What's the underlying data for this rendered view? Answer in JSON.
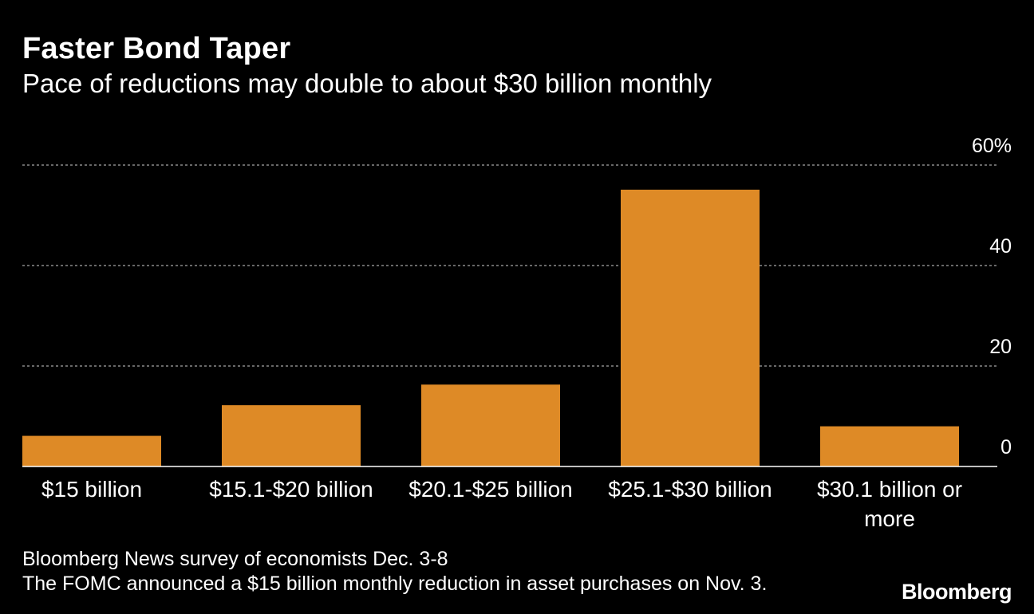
{
  "header": {
    "title": "Faster Bond Taper",
    "subtitle": "Pace of reductions may double to about $30 billion monthly"
  },
  "footer": {
    "note_1": "Bloomberg News survey of economists Dec. 3-8",
    "note_2": "The FOMC announced a $15 billion monthly reduction in asset purchases on Nov. 3.",
    "logo_text": "Bloomberg"
  },
  "colors": {
    "bar": "#DE8A26",
    "grid": "#8a8a8a",
    "background": "#000000",
    "text": "#ffffff"
  },
  "chart_data": {
    "type": "bar",
    "title": "Faster Bond Taper",
    "subtitle": "Pace of reductions may double to about $30 billion monthly",
    "xlabel": "",
    "ylabel": "",
    "categories": [
      [
        "$15 billion"
      ],
      [
        "$15.1-$20 billion"
      ],
      [
        "$20.1-$25 billion"
      ],
      [
        "$25.1-$30 billion"
      ],
      [
        "$30.1 billion or",
        "more"
      ]
    ],
    "values": [
      6.1,
      12.2,
      16.3,
      55.1,
      8.0
    ],
    "ylim": [
      0,
      60
    ],
    "yticks": [
      0,
      20,
      40,
      60
    ],
    "ytick_labels": [
      "0",
      "20",
      "40",
      "60%"
    ],
    "y_axis_side": "right",
    "grid": true,
    "legend": "none"
  }
}
